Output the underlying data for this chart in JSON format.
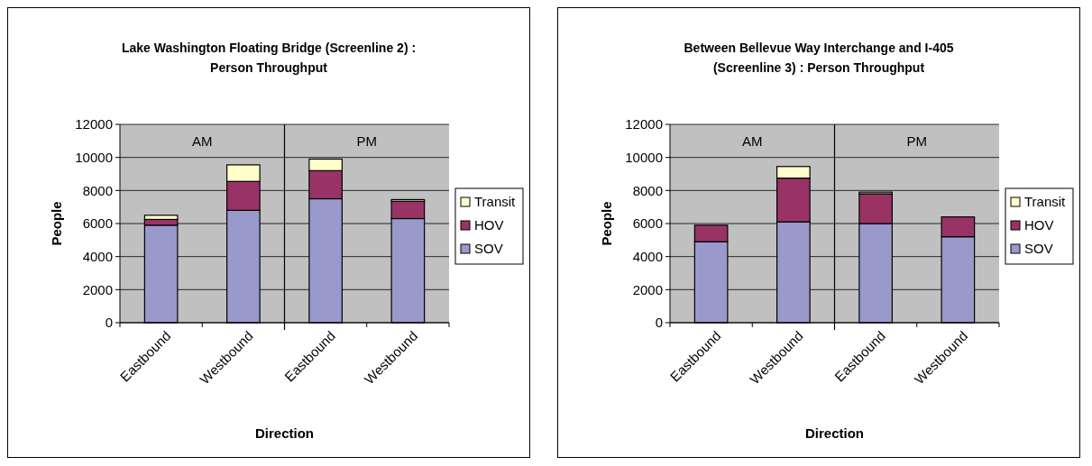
{
  "chart_data": [
    {
      "type": "bar",
      "title": "Lake Washington Floating Bridge (Screenline 2) :\nPerson Throughput",
      "xlabel": "Direction",
      "ylabel": "People",
      "categories": [
        "Eastbound",
        "Westbound",
        "Eastbound",
        "Westbound"
      ],
      "stacked": true,
      "ylim": [
        0,
        12000
      ],
      "yticks": [
        0,
        2000,
        4000,
        6000,
        8000,
        10000,
        12000
      ],
      "grid": "y",
      "legend": "right",
      "annotations": [
        "AM",
        "PM"
      ],
      "series": [
        {
          "name": "SOV",
          "color": "#9999cc",
          "values": [
            5900,
            6800,
            7500,
            6300
          ]
        },
        {
          "name": "HOV",
          "color": "#993366",
          "values": [
            350,
            1750,
            1700,
            1050
          ]
        },
        {
          "name": "Transit",
          "color": "#ffffcc",
          "values": [
            250,
            1000,
            700,
            100
          ]
        }
      ]
    },
    {
      "type": "bar",
      "title": "Between Bellevue Way Interchange and I-405\n(Screenline 3) : Person Throughput",
      "xlabel": "Direction",
      "ylabel": "People",
      "categories": [
        "Eastbound",
        "Westbound",
        "Eastbound",
        "Westbound"
      ],
      "stacked": true,
      "ylim": [
        0,
        12000
      ],
      "yticks": [
        0,
        2000,
        4000,
        6000,
        8000,
        10000,
        12000
      ],
      "grid": "y",
      "legend": "right",
      "annotations": [
        "AM",
        "PM"
      ],
      "series": [
        {
          "name": "SOV",
          "color": "#9999cc",
          "values": [
            4900,
            6100,
            6000,
            5200
          ]
        },
        {
          "name": "HOV",
          "color": "#993366",
          "values": [
            1000,
            2650,
            1800,
            1200
          ]
        },
        {
          "name": "Transit",
          "color": "#ffffcc",
          "values": [
            0,
            700,
            100,
            0
          ]
        }
      ]
    }
  ]
}
